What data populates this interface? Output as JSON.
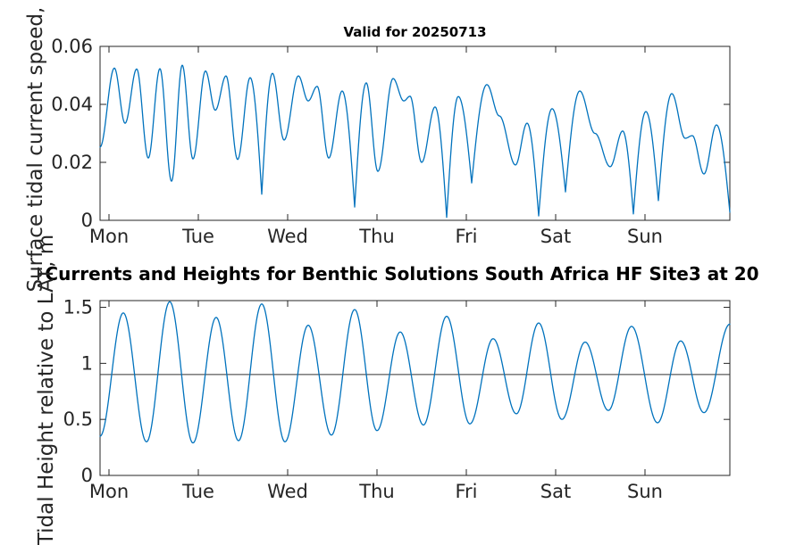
{
  "figure": {
    "background": "#ffffff",
    "axis_color": "#262626",
    "title_color": "#000000"
  },
  "chart_data": [
    {
      "id": "surface-tidal-current-speed",
      "type": "line",
      "title": "Valid for 20250713",
      "ylabel": "Surface tidal current speed, kn",
      "x_tick_labels": [
        "Mon",
        "Tue",
        "Wed",
        "Thu",
        "Fri",
        "Sat",
        "Sun"
      ],
      "x_tick_values": [
        0,
        1,
        2,
        3,
        4,
        5,
        6
      ],
      "xlim": [
        -0.1,
        6.95
      ],
      "ylim": [
        0,
        0.06
      ],
      "y_tick_values": [
        0,
        0.02,
        0.04,
        0.06
      ],
      "y_tick_labels": [
        "0",
        "0.02",
        "0.04",
        "0.06"
      ],
      "line_color": "#0072BD",
      "grid": false,
      "legend": null,
      "cusp_threshold": 0.013,
      "points": [
        [
          -0.1,
          0.0253
        ],
        [
          0.06,
          0.0525
        ],
        [
          0.18,
          0.0335
        ],
        [
          0.31,
          0.0522
        ],
        [
          0.44,
          0.0215
        ],
        [
          0.57,
          0.0523
        ],
        [
          0.7,
          0.0135
        ],
        [
          0.82,
          0.0535
        ],
        [
          0.94,
          0.0212
        ],
        [
          1.08,
          0.0515
        ],
        [
          1.19,
          0.038
        ],
        [
          1.31,
          0.0498
        ],
        [
          1.44,
          0.021
        ],
        [
          1.58,
          0.0492
        ],
        [
          1.71,
          0.009
        ],
        [
          1.83,
          0.0507
        ],
        [
          1.96,
          0.0277
        ],
        [
          2.12,
          0.0498
        ],
        [
          2.23,
          0.0412
        ],
        [
          2.33,
          0.0462
        ],
        [
          2.46,
          0.0215
        ],
        [
          2.61,
          0.0446
        ],
        [
          2.75,
          0.0046
        ],
        [
          2.88,
          0.0474
        ],
        [
          3.01,
          0.0169
        ],
        [
          3.18,
          0.0489
        ],
        [
          3.3,
          0.0412
        ],
        [
          3.37,
          0.0428
        ],
        [
          3.5,
          0.02
        ],
        [
          3.65,
          0.0391
        ],
        [
          3.78,
          0.001
        ],
        [
          3.91,
          0.0427
        ],
        [
          4.06,
          0.0129
        ],
        [
          4.23,
          0.0468
        ],
        [
          4.37,
          0.036
        ],
        [
          4.55,
          0.0191
        ],
        [
          4.68,
          0.0335
        ],
        [
          4.81,
          0.0015
        ],
        [
          4.96,
          0.0385
        ],
        [
          5.11,
          0.0098
        ],
        [
          5.27,
          0.0446
        ],
        [
          5.44,
          0.03
        ],
        [
          5.61,
          0.0185
        ],
        [
          5.75,
          0.0308
        ],
        [
          5.87,
          0.0022
        ],
        [
          6.01,
          0.0375
        ],
        [
          6.15,
          0.0068
        ],
        [
          6.3,
          0.0437
        ],
        [
          6.45,
          0.0283
        ],
        [
          6.53,
          0.0292
        ],
        [
          6.66,
          0.016
        ],
        [
          6.8,
          0.0329
        ],
        [
          6.95,
          0.0028
        ]
      ]
    },
    {
      "id": "tidal-height",
      "type": "line",
      "title": "Currents and Heights for Benthic Solutions South Africa HF Site3 at 20",
      "title_clipped_by_image_edges": true,
      "ylabel": "Tidal Height relative to LAT, m",
      "x_tick_labels": [
        "Mon",
        "Tue",
        "Wed",
        "Thu",
        "Fri",
        "Sat",
        "Sun"
      ],
      "x_tick_values": [
        0,
        1,
        2,
        3,
        4,
        5,
        6
      ],
      "xlim": [
        -0.1,
        6.95
      ],
      "ylim": [
        0,
        1.56
      ],
      "y_tick_values": [
        0,
        0.5,
        1,
        1.5
      ],
      "y_tick_labels": [
        "0",
        "0.5",
        "1",
        "1.5"
      ],
      "line_color": "#0072BD",
      "grid": false,
      "legend": null,
      "cusp_threshold": null,
      "reference_line": {
        "value": 0.9,
        "color": "#333333"
      },
      "points": [
        [
          -0.1,
          0.35
        ],
        [
          0.16,
          1.45
        ],
        [
          0.42,
          0.3
        ],
        [
          0.68,
          1.55
        ],
        [
          0.94,
          0.29
        ],
        [
          1.2,
          1.41
        ],
        [
          1.45,
          0.31
        ],
        [
          1.71,
          1.53
        ],
        [
          1.97,
          0.3
        ],
        [
          2.23,
          1.34
        ],
        [
          2.49,
          0.36
        ],
        [
          2.75,
          1.48
        ],
        [
          3.0,
          0.4
        ],
        [
          3.26,
          1.28
        ],
        [
          3.52,
          0.45
        ],
        [
          3.78,
          1.42
        ],
        [
          4.04,
          0.46
        ],
        [
          4.3,
          1.22
        ],
        [
          4.56,
          0.55
        ],
        [
          4.81,
          1.36
        ],
        [
          5.07,
          0.5
        ],
        [
          5.33,
          1.19
        ],
        [
          5.59,
          0.58
        ],
        [
          5.85,
          1.33
        ],
        [
          6.14,
          0.47
        ],
        [
          6.4,
          1.2
        ],
        [
          6.66,
          0.56
        ],
        [
          6.95,
          1.35
        ]
      ]
    }
  ]
}
